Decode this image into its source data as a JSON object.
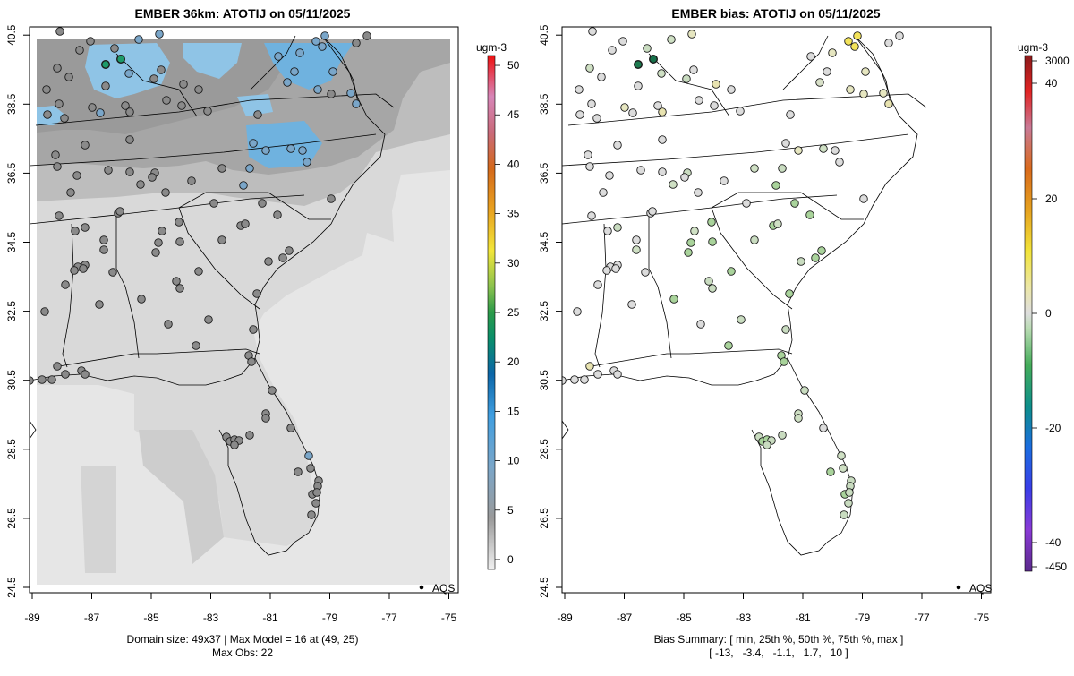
{
  "chart_data": [
    {
      "type": "heatmap",
      "title": "EMBER 36km: ATOTIJ on 05/11/2025",
      "x_ticks": [
        "-89",
        "-87",
        "-85",
        "-83",
        "-81",
        "-79",
        "-77",
        "-75"
      ],
      "y_ticks": [
        "24.5",
        "26.5",
        "28.5",
        "30.5",
        "32.5",
        "34.5",
        "36.5",
        "38.5",
        "40.5"
      ],
      "xlim": [
        -89.2,
        -74.6
      ],
      "ylim": [
        24.1,
        40.8
      ],
      "footer_lines": [
        "Domain size: 49x37 | Max Model = 16 at (49, 25)",
        "Max Obs: 22"
      ],
      "legend_label": "AQS",
      "colorbar": {
        "unit": "ugm-3",
        "labels": [
          "0",
          "5",
          "10",
          "15",
          "20",
          "25",
          "30",
          "35",
          "40",
          "45",
          "50"
        ],
        "range": [
          -1,
          51
        ]
      }
    },
    {
      "type": "scatter",
      "title": "EMBER bias: ATOTIJ on 05/11/2025",
      "x_ticks": [
        "-89",
        "-87",
        "-85",
        "-83",
        "-81",
        "-79",
        "-77",
        "-75"
      ],
      "y_ticks": [
        "24.5",
        "26.5",
        "28.5",
        "30.5",
        "32.5",
        "34.5",
        "36.5",
        "38.5",
        "40.5"
      ],
      "xlim": [
        -89.2,
        -74.6
      ],
      "ylim": [
        24.1,
        40.8
      ],
      "footer_lines": [
        "Bias Summary: [ min, 25th %, 50th %, 75th %, max ]",
        "[ -13,   -3.4,   -1.1,   1.7,   10 ]"
      ],
      "bias_summary": {
        "min": -13,
        "p25": -3.4,
        "p50": -1.1,
        "p75": 1.7,
        "max": 10
      },
      "legend_label": "AQS",
      "colorbar": {
        "unit": "ugm-3",
        "labels": [
          "3000",
          "40",
          "20",
          "0",
          "-20",
          "-40",
          "-450"
        ]
      }
    }
  ],
  "colors": {
    "land_base": "#d9d9d9",
    "ocean": "#e6e6e6",
    "high_dark": "#9c9c9c",
    "high_mid": "#adadad",
    "blue_patch": "#6fb2df",
    "blue_light": "#8fc4e6",
    "boundary": "#000000"
  }
}
